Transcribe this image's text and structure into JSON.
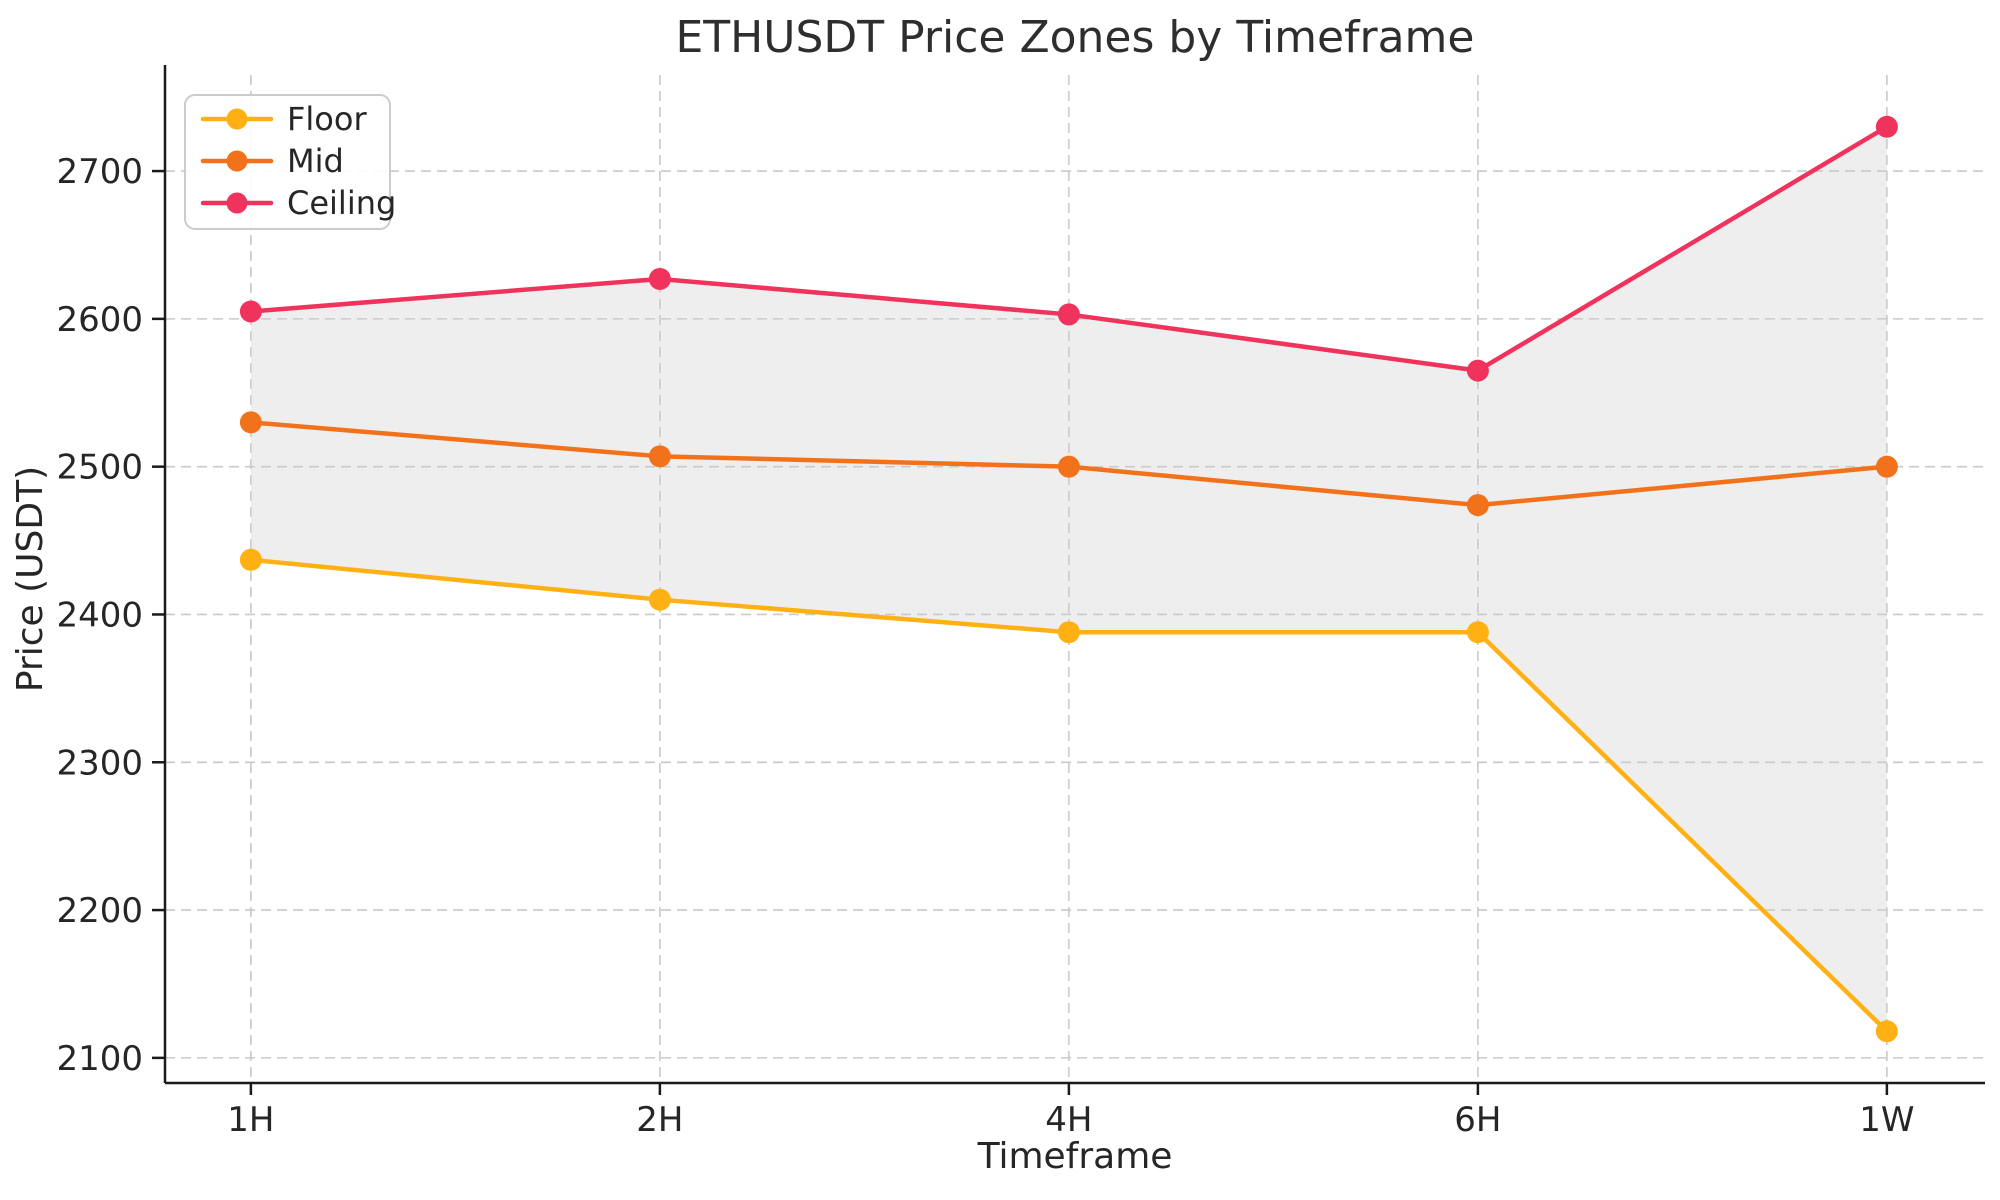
{
  "title": "ETHUSDT Price Zones by Timeframe",
  "chart_data": {
    "type": "line",
    "title": "ETHUSDT Price Zones by Timeframe",
    "xlabel": "Timeframe",
    "ylabel": "Price (USDT)",
    "categories": [
      "1H",
      "2H",
      "4H",
      "6H",
      "1W"
    ],
    "series": [
      {
        "name": "Floor",
        "color": "#FFB114",
        "values": [
          2437,
          2410,
          2388,
          2388,
          2118
        ]
      },
      {
        "name": "Mid",
        "color": "#F2721C",
        "values": [
          2530,
          2507,
          2500,
          2474,
          2500
        ]
      },
      {
        "name": "Ceiling",
        "color": "#F0335D",
        "values": [
          2605,
          2627,
          2603,
          2565,
          2730
        ]
      }
    ],
    "band": {
      "between": [
        "Floor",
        "Ceiling"
      ],
      "fill": "#cfcfcf",
      "opacity": 0.35
    },
    "yticks": [
      2100,
      2200,
      2300,
      2400,
      2500,
      2600,
      2700
    ],
    "ylim": [
      2083,
      2765
    ],
    "grid": true,
    "grid_style": "dashed",
    "legend_position": "upper-left",
    "legend": [
      "Floor",
      "Mid",
      "Ceiling"
    ]
  },
  "style": {
    "grid_color": "#c9c9c9",
    "spine_color": "#1a1a1a",
    "text_color": "#262626",
    "legend_border": "#cccccc",
    "legend_bg": "#ffffff"
  }
}
